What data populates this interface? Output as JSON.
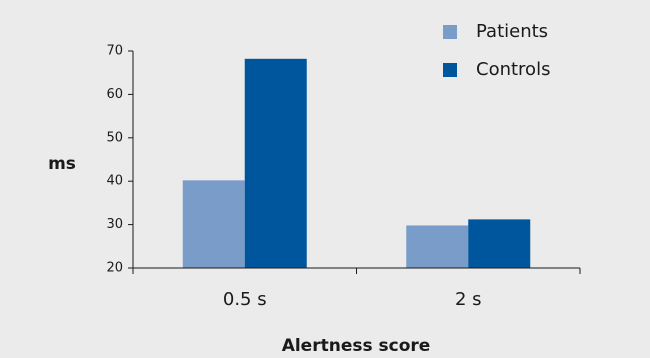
{
  "chart_data": {
    "type": "bar",
    "xlabel": "Alertness score",
    "ylabel": "ms",
    "categories": [
      "0.5 s",
      "2 s"
    ],
    "series": [
      {
        "name": "Patients",
        "values": [
          40.2,
          29.8
        ]
      },
      {
        "name": "Controls",
        "values": [
          68.2,
          31.2
        ]
      }
    ],
    "ylim": [
      20,
      70
    ],
    "yticks": [
      20,
      30,
      40,
      50,
      60,
      70
    ],
    "grid": false,
    "legend": "top-right",
    "colors": {
      "Patients": "#7a9cc8",
      "Controls": "#00569c",
      "axis": "#1a1a1a",
      "background": "#ebebeb"
    }
  }
}
